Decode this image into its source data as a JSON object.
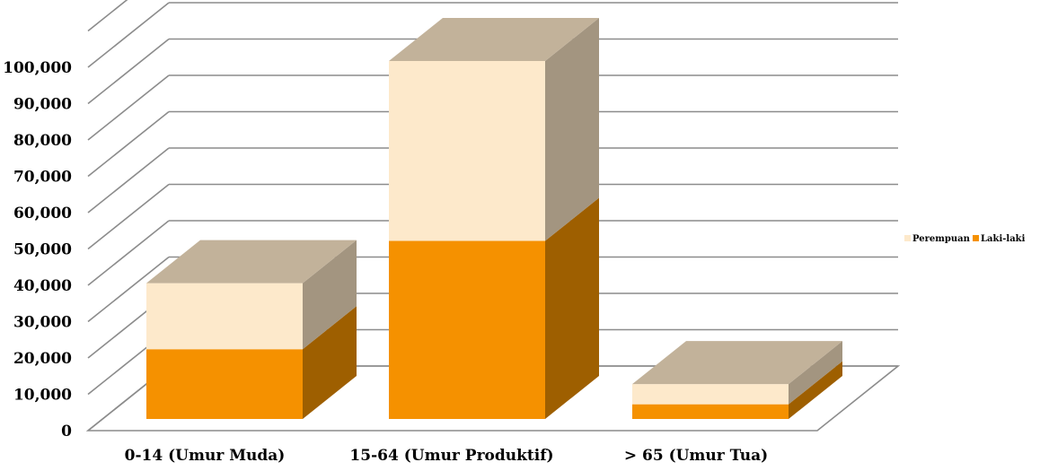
{
  "chart_data": {
    "type": "bar",
    "stacked": true,
    "three_d": true,
    "categories": [
      "0-14 (Umur Muda)",
      "15-64 (Umur Produktif)",
      "> 65 (Umur Tua)"
    ],
    "series": [
      {
        "name": "Laki-laki",
        "values": [
          19000,
          48500,
          4000
        ],
        "color": "#F59100",
        "side_color": "#9E5F00"
      },
      {
        "name": "Perempuan",
        "values": [
          18000,
          49000,
          5500
        ],
        "color": "#FDE9CB",
        "side_color": "#A39580"
      }
    ],
    "top_color": "#C2B29A",
    "y_ticks": [
      "0",
      "10,000",
      "20,000",
      "30,000",
      "40,000",
      "50,000",
      "60,000",
      "70,000",
      "80,000",
      "90,000",
      "100,000"
    ],
    "ylim": [
      0,
      100000
    ],
    "grid": true,
    "legend_position": "right",
    "legend": [
      "Perempuan",
      "Laki-laki"
    ],
    "title": "",
    "xlabel": "",
    "ylabel": ""
  }
}
